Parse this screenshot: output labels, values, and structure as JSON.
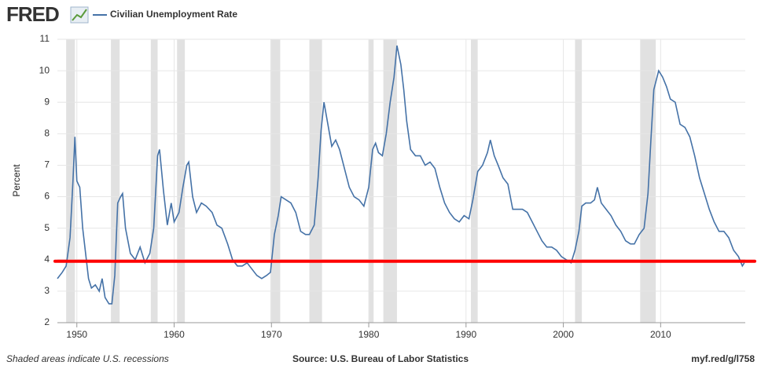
{
  "chart_data": {
    "type": "line",
    "logo": "FRED",
    "y_label": "Percent",
    "note": "Shaded areas indicate U.S. recessions",
    "source": "Source: U.S. Bureau of Labor Statistics",
    "link": "myf.red/g/l758",
    "xlim": [
      1948,
      2018.7
    ],
    "xticks": [
      1950,
      1960,
      1970,
      1980,
      1990,
      2000,
      2010
    ],
    "ylim": [
      2,
      11
    ],
    "yticks": [
      2,
      3,
      4,
      5,
      6,
      7,
      8,
      9,
      10,
      11
    ],
    "grid": true,
    "recession_color": "#e1e1e1",
    "recessions": [
      [
        1948.9,
        1949.8
      ],
      [
        1953.5,
        1954.4
      ],
      [
        1957.6,
        1958.3
      ],
      [
        1960.3,
        1961.1
      ],
      [
        1969.9,
        1970.9
      ],
      [
        1973.9,
        1975.2
      ],
      [
        1980.0,
        1980.5
      ],
      [
        1981.5,
        1982.9
      ],
      [
        1990.5,
        1991.2
      ],
      [
        2001.2,
        2001.9
      ],
      [
        2007.9,
        2009.5
      ]
    ],
    "reference_line": {
      "value": 3.95,
      "color": "#ff0000"
    },
    "x": [
      1948.0,
      1948.5,
      1948.9,
      1949.3,
      1949.6,
      1949.8,
      1950.0,
      1950.3,
      1950.6,
      1950.9,
      1951.2,
      1951.5,
      1951.9,
      1952.3,
      1952.6,
      1952.9,
      1953.3,
      1953.6,
      1953.9,
      1954.2,
      1954.5,
      1954.7,
      1955.0,
      1955.5,
      1956.0,
      1956.5,
      1957.0,
      1957.5,
      1957.9,
      1958.3,
      1958.5,
      1958.9,
      1959.3,
      1959.7,
      1960.0,
      1960.5,
      1960.9,
      1961.3,
      1961.5,
      1961.9,
      1962.3,
      1962.8,
      1963.3,
      1963.9,
      1964.4,
      1964.9,
      1965.5,
      1966.0,
      1966.5,
      1967.0,
      1967.5,
      1968.0,
      1968.5,
      1969.0,
      1969.5,
      1969.9,
      1970.3,
      1970.7,
      1971.0,
      1971.5,
      1972.0,
      1972.5,
      1973.0,
      1973.5,
      1973.9,
      1974.4,
      1974.8,
      1975.1,
      1975.4,
      1975.8,
      1976.2,
      1976.6,
      1977.0,
      1977.5,
      1978.0,
      1978.5,
      1979.0,
      1979.5,
      1980.0,
      1980.4,
      1980.7,
      1981.0,
      1981.4,
      1981.8,
      1982.2,
      1982.6,
      1982.9,
      1983.3,
      1983.6,
      1983.9,
      1984.3,
      1984.8,
      1985.3,
      1985.8,
      1986.3,
      1986.8,
      1987.3,
      1987.8,
      1988.3,
      1988.8,
      1989.3,
      1989.8,
      1990.3,
      1990.7,
      1991.2,
      1991.7,
      1992.2,
      1992.5,
      1992.9,
      1993.3,
      1993.8,
      1994.3,
      1994.8,
      1995.3,
      1995.8,
      1996.3,
      1996.8,
      1997.3,
      1997.8,
      1998.3,
      1998.8,
      1999.3,
      1999.8,
      2000.3,
      2000.8,
      2001.2,
      2001.6,
      2001.9,
      2002.3,
      2002.8,
      2003.2,
      2003.5,
      2003.9,
      2004.4,
      2004.9,
      2005.4,
      2005.9,
      2006.4,
      2006.9,
      2007.3,
      2007.8,
      2008.3,
      2008.7,
      2009.0,
      2009.3,
      2009.8,
      2010.2,
      2010.6,
      2011.0,
      2011.5,
      2012.0,
      2012.5,
      2013.0,
      2013.5,
      2014.0,
      2014.5,
      2015.0,
      2015.5,
      2016.0,
      2016.5,
      2017.0,
      2017.5,
      2018.0,
      2018.4,
      2018.6
    ],
    "series": [
      {
        "name": "Civilian Unemployment Rate",
        "color": "#4572a7",
        "values": [
          3.4,
          3.6,
          3.8,
          4.7,
          6.5,
          7.9,
          6.5,
          6.3,
          5.0,
          4.2,
          3.4,
          3.1,
          3.2,
          3.0,
          3.4,
          2.8,
          2.6,
          2.6,
          3.5,
          5.8,
          6.0,
          6.1,
          5.0,
          4.2,
          4.0,
          4.4,
          3.9,
          4.2,
          5.0,
          7.3,
          7.5,
          6.2,
          5.1,
          5.8,
          5.2,
          5.5,
          6.3,
          7.0,
          7.1,
          6.0,
          5.5,
          5.8,
          5.7,
          5.5,
          5.1,
          5.0,
          4.5,
          4.0,
          3.8,
          3.8,
          3.9,
          3.7,
          3.5,
          3.4,
          3.5,
          3.6,
          4.8,
          5.4,
          6.0,
          5.9,
          5.8,
          5.5,
          4.9,
          4.8,
          4.8,
          5.1,
          6.6,
          8.1,
          9.0,
          8.3,
          7.6,
          7.8,
          7.5,
          6.9,
          6.3,
          6.0,
          5.9,
          5.7,
          6.3,
          7.5,
          7.7,
          7.4,
          7.3,
          8.0,
          9.0,
          9.8,
          10.8,
          10.2,
          9.4,
          8.4,
          7.5,
          7.3,
          7.3,
          7.0,
          7.1,
          6.9,
          6.3,
          5.8,
          5.5,
          5.3,
          5.2,
          5.4,
          5.3,
          5.9,
          6.8,
          7.0,
          7.4,
          7.8,
          7.3,
          7.0,
          6.6,
          6.4,
          5.6,
          5.6,
          5.6,
          5.5,
          5.2,
          4.9,
          4.6,
          4.4,
          4.4,
          4.3,
          4.1,
          4.0,
          3.9,
          4.3,
          4.9,
          5.7,
          5.8,
          5.8,
          5.9,
          6.3,
          5.8,
          5.6,
          5.4,
          5.1,
          4.9,
          4.6,
          4.5,
          4.5,
          4.8,
          5.0,
          6.1,
          7.8,
          9.4,
          10.0,
          9.8,
          9.5,
          9.1,
          9.0,
          8.3,
          8.2,
          7.9,
          7.3,
          6.6,
          6.1,
          5.6,
          5.2,
          4.9,
          4.9,
          4.7,
          4.3,
          4.1,
          3.8,
          3.9
        ]
      }
    ]
  }
}
